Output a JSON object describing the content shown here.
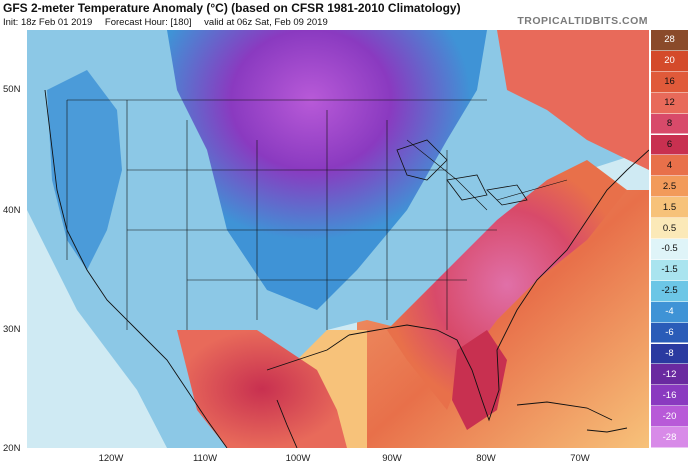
{
  "header": {
    "title": "GFS 2-meter Temperature Anomaly (°C) (based on CFSR 1981-2010 Climatology)",
    "init": "Init: 18z Feb 01 2019",
    "forecast_hour": "Forecast Hour: [180]",
    "valid": "valid at 06z Sat, Feb 09 2019",
    "brand": "TROPICALTIDBITS.COM"
  },
  "axes": {
    "lat_labels": [
      "50N",
      "40N",
      "30N",
      "20N"
    ],
    "lon_labels": [
      "120W",
      "110W",
      "100W",
      "90W",
      "80W",
      "70W"
    ]
  },
  "colorbar": {
    "labels": [
      "28",
      "20",
      "16",
      "12",
      "8",
      "6",
      "4",
      "2.5",
      "1.5",
      "0.5",
      "-0.5",
      "-1.5",
      "-2.5",
      "-4",
      "-6",
      "-8",
      "-12",
      "-16",
      "-20",
      "-28"
    ],
    "colors": [
      "#8a4a2a",
      "#d44a2a",
      "#e05a3a",
      "#e86a5a",
      "#d84a6a",
      "#c83050",
      "#e8704a",
      "#f29a5a",
      "#f7c27a",
      "#fbe9b8",
      "#dff4f8",
      "#a9e4ef",
      "#6cc6e6",
      "#3f93d6",
      "#2a5cb8",
      "#2a3aa0",
      "#6a2aa0",
      "#8a3ac0",
      "#b85ad8",
      "#d88ae8"
    ]
  },
  "map": {
    "land_color": "#8cc8e6",
    "ocean_color": "#fbe9b8"
  }
}
